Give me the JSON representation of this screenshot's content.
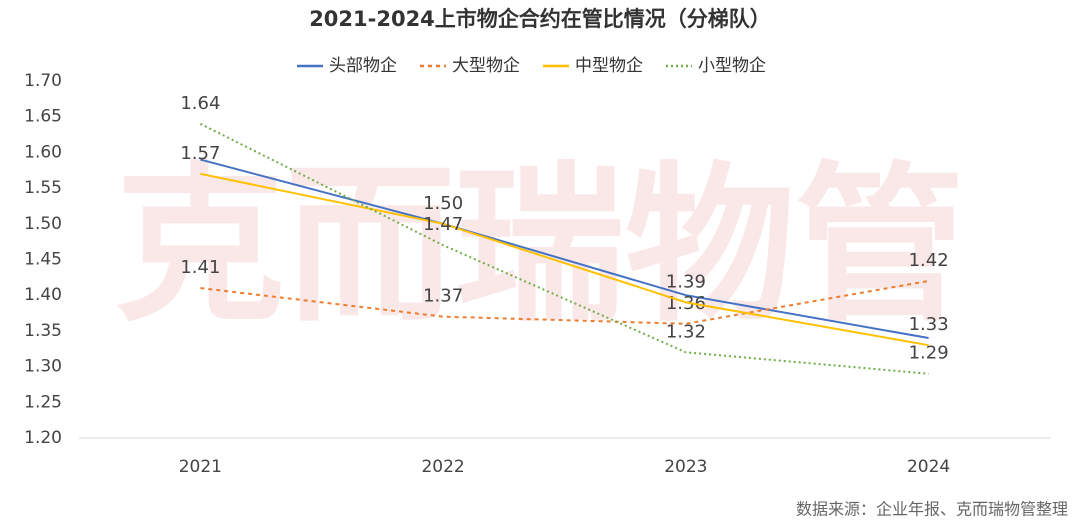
{
  "chart_data": {
    "type": "line",
    "title": "2021-2024上市物企合约在管比情况（分梯队）",
    "watermark": "克而瑞物管",
    "source": "数据来源：企业年报、克而瑞物管整理",
    "categories": [
      "2021",
      "2022",
      "2023",
      "2024"
    ],
    "series": [
      {
        "name": "头部物企",
        "color": "#4472c4",
        "dash": "solid",
        "values": [
          1.59,
          1.5,
          1.4,
          1.34
        ]
      },
      {
        "name": "大型物企",
        "color": "#ed7d31",
        "dash": "dashed",
        "values": [
          1.41,
          1.37,
          1.36,
          1.42
        ],
        "value_labels": [
          "1.41",
          "1.37",
          "1.36",
          "1.42"
        ]
      },
      {
        "name": "中型物企",
        "color": "#ffc000",
        "dash": "solid",
        "values": [
          1.57,
          1.5,
          1.39,
          1.33
        ],
        "value_labels": [
          "1.57",
          "1.50",
          "1.39",
          "1.33"
        ]
      },
      {
        "name": "小型物企",
        "color": "#70ad47",
        "dash": "dotted",
        "values": [
          1.64,
          1.47,
          1.32,
          1.29
        ],
        "value_labels": [
          "1.64",
          "1.47",
          "1.32",
          "1.29"
        ]
      }
    ],
    "ylim": [
      1.2,
      1.7
    ],
    "yticks": [
      {
        "value": 1.2,
        "label": "1.20"
      },
      {
        "value": 1.25,
        "label": "1.25"
      },
      {
        "value": 1.3,
        "label": "1.30"
      },
      {
        "value": 1.35,
        "label": "1.35"
      },
      {
        "value": 1.4,
        "label": "1.40"
      },
      {
        "value": 1.45,
        "label": "1.45"
      },
      {
        "value": 1.5,
        "label": "1.50"
      },
      {
        "value": 1.55,
        "label": "1.55"
      },
      {
        "value": 1.6,
        "label": "1.60"
      },
      {
        "value": 1.65,
        "label": "1.65"
      },
      {
        "value": 1.7,
        "label": "1.70"
      }
    ],
    "grid": false,
    "legend": "top"
  }
}
